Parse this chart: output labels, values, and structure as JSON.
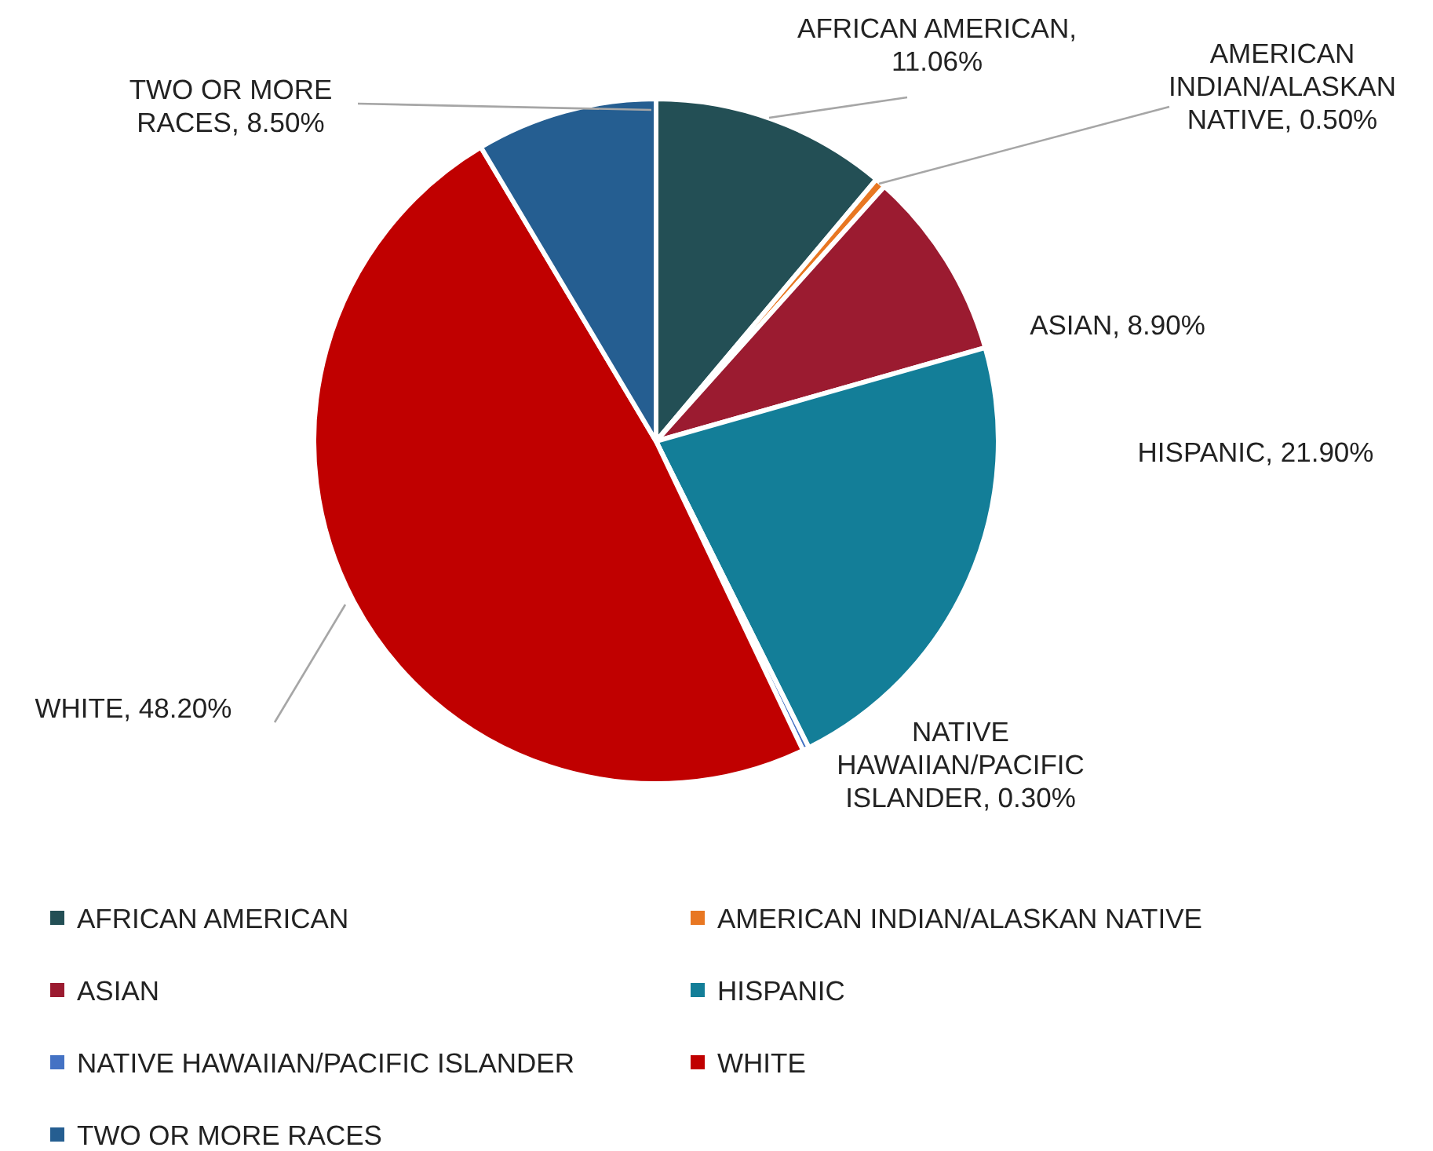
{
  "chart_data": {
    "type": "pie",
    "categories": [
      "AFRICAN AMERICAN",
      "AMERICAN INDIAN/ALASKAN NATIVE",
      "ASIAN",
      "HISPANIC",
      "NATIVE HAWAIIAN/PACIFIC ISLANDER",
      "WHITE",
      "TWO OR MORE RACES"
    ],
    "values": [
      11.06,
      0.5,
      8.9,
      21.9,
      0.3,
      48.2,
      8.5
    ],
    "value_labels": [
      "AFRICAN AMERICAN, 11.06%",
      "AMERICAN INDIAN/ALASKAN NATIVE, 0.50%",
      "ASIAN, 8.90%",
      "HISPANIC, 21.90%",
      "NATIVE HAWAIIAN/PACIFIC ISLANDER, 0.30%",
      "WHITE, 48.20%",
      "TWO OR MORE RACES, 8.50%"
    ],
    "colors": [
      "#234f55",
      "#e87722",
      "#9b1b30",
      "#137e98",
      "#4472c4",
      "#c00000",
      "#255e91"
    ],
    "legend": "bottom"
  }
}
